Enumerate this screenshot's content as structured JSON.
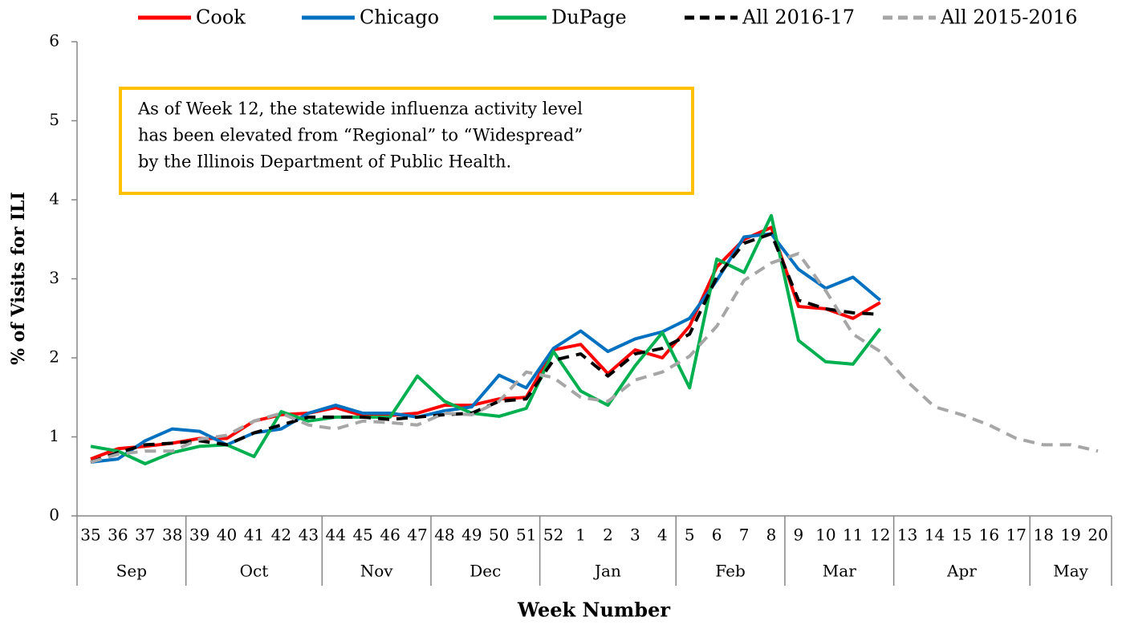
{
  "chart_data": {
    "type": "line",
    "y_axis_title": "% of Visits for ILI",
    "x_axis_title": "Week Number",
    "annotation": [
      "As of Week 12, the statewide influenza activity level",
      "has been elevated from “Regional” to “Widespread”",
      "by the Illinois Department of Public Health."
    ],
    "annotation_border_color": "#ffc000",
    "categories": [
      "35",
      "36",
      "37",
      "38",
      "39",
      "40",
      "41",
      "42",
      "43",
      "44",
      "45",
      "46",
      "47",
      "48",
      "49",
      "50",
      "51",
      "52",
      "1",
      "2",
      "3",
      "4",
      "5",
      "6",
      "7",
      "8",
      "9",
      "10",
      "11",
      "12",
      "13",
      "14",
      "15",
      "16",
      "17",
      "18",
      "19",
      "20"
    ],
    "category_groups": [
      "Sep",
      null,
      null,
      null,
      "Oct",
      null,
      null,
      null,
      null,
      "Nov",
      null,
      null,
      null,
      "Dec",
      null,
      null,
      null,
      "Jan",
      null,
      null,
      null,
      null,
      "Feb",
      null,
      null,
      null,
      "Mar",
      null,
      null,
      null,
      "Apr",
      null,
      null,
      null,
      null,
      "May",
      null,
      null
    ],
    "ylim": [
      0,
      6
    ],
    "yticks": [
      0,
      1,
      2,
      3,
      4,
      5,
      6
    ],
    "legend_position": "top",
    "series": [
      {
        "name": "Cook",
        "color": "#ff0000",
        "line_style": "solid",
        "values": [
          0.72,
          0.85,
          0.88,
          0.92,
          0.98,
          0.98,
          1.2,
          1.28,
          1.3,
          1.37,
          1.27,
          1.27,
          1.3,
          1.4,
          1.4,
          1.48,
          1.5,
          2.1,
          2.17,
          1.8,
          2.1,
          2.0,
          2.4,
          3.15,
          3.5,
          3.65,
          2.65,
          2.62,
          2.5,
          2.7,
          null,
          null,
          null,
          null,
          null,
          null,
          null,
          null
        ]
      },
      {
        "name": "Chicago",
        "color": "#0070c0",
        "line_style": "solid",
        "values": [
          0.68,
          0.72,
          0.95,
          1.1,
          1.07,
          0.9,
          1.05,
          1.1,
          1.3,
          1.4,
          1.3,
          1.3,
          1.25,
          1.33,
          1.38,
          1.78,
          1.62,
          2.12,
          2.34,
          2.08,
          2.24,
          2.33,
          2.5,
          2.98,
          3.53,
          3.57,
          3.12,
          2.88,
          3.02,
          2.73,
          null,
          null,
          null,
          null,
          null,
          null,
          null,
          null
        ]
      },
      {
        "name": "DuPage",
        "color": "#00b050",
        "line_style": "solid",
        "values": [
          0.88,
          0.82,
          0.66,
          0.8,
          0.88,
          0.9,
          0.75,
          1.32,
          1.2,
          1.25,
          1.25,
          1.25,
          1.77,
          1.45,
          1.3,
          1.26,
          1.36,
          2.08,
          1.58,
          1.4,
          1.9,
          2.32,
          1.62,
          3.25,
          3.08,
          3.8,
          2.22,
          1.95,
          1.92,
          2.37,
          null,
          null,
          null,
          null,
          null,
          null,
          null,
          null
        ]
      },
      {
        "name": "All 2016-17",
        "color": "#000000",
        "line_style": "dashed",
        "values": [
          0.68,
          0.8,
          0.9,
          0.92,
          0.95,
          0.9,
          1.05,
          1.15,
          1.25,
          1.25,
          1.25,
          1.22,
          1.25,
          1.28,
          1.3,
          1.45,
          1.48,
          1.97,
          2.05,
          1.77,
          2.05,
          2.12,
          2.3,
          3.02,
          3.45,
          3.57,
          2.73,
          2.62,
          2.57,
          2.55,
          null,
          null,
          null,
          null,
          null,
          null,
          null,
          null
        ]
      },
      {
        "name": "All 2015-2016",
        "color": "#a6a6a6",
        "line_style": "dashed",
        "values": [
          0.68,
          0.78,
          0.82,
          0.82,
          0.97,
          1.02,
          1.2,
          1.3,
          1.15,
          1.1,
          1.2,
          1.18,
          1.15,
          1.3,
          1.28,
          1.45,
          1.82,
          1.75,
          1.5,
          1.45,
          1.72,
          1.82,
          2.02,
          2.4,
          2.98,
          3.2,
          3.32,
          2.85,
          2.3,
          2.08,
          1.7,
          1.38,
          1.28,
          1.15,
          0.98,
          0.9,
          0.9,
          0.82
        ]
      }
    ]
  }
}
